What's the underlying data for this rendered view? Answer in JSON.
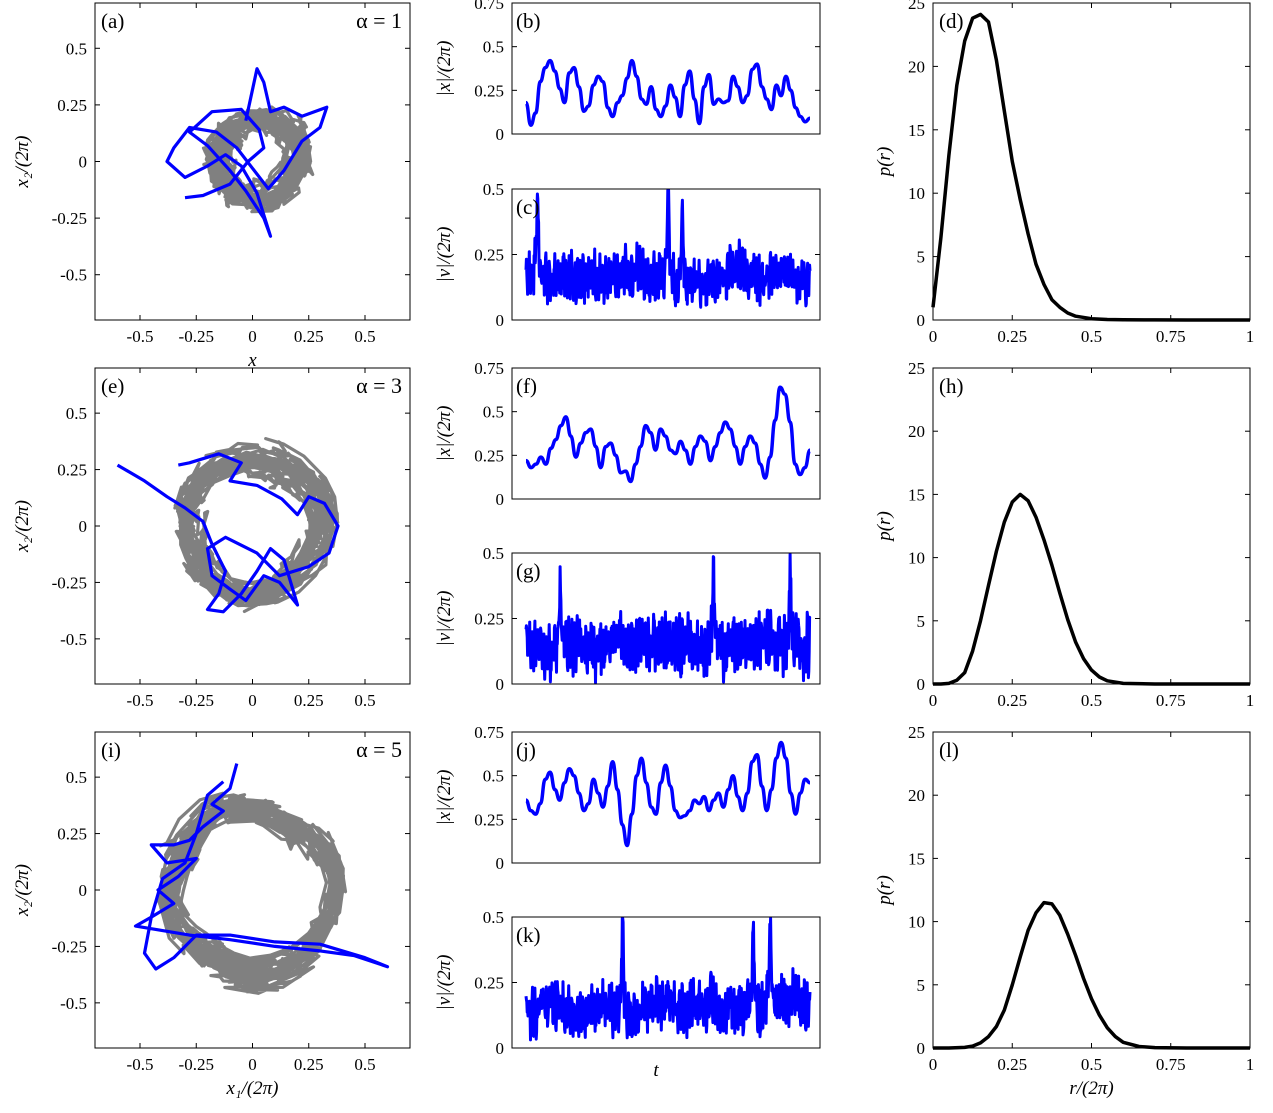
{
  "colors": {
    "trajectory": "#0000ff",
    "background_trajectories": "#808080",
    "pdf": "#000000"
  },
  "chart_data": [
    {
      "type": "scatter",
      "panel": "(a)",
      "alpha_label": "α = 1",
      "xlabel": "x",
      "ylabel": "x₂/(2π)",
      "xlim": [
        -0.7,
        0.7
      ],
      "ylim": [
        -0.7,
        0.7
      ],
      "xticks": [
        "-0.5",
        "-0.25",
        "0",
        "0.25",
        "0.5"
      ],
      "yticks": [
        "-0.5",
        "-0.25",
        "0",
        "0.25",
        "0.5"
      ],
      "background_ring": {
        "radius": 0.17,
        "spread": 0.09,
        "arms": 1
      },
      "trajectory": [
        [
          -0.03,
          0.18
        ],
        [
          0.02,
          0.41
        ],
        [
          0.05,
          0.35
        ],
        [
          0.08,
          0.22
        ],
        [
          0.14,
          0.24
        ],
        [
          0.22,
          0.2
        ],
        [
          0.33,
          0.24
        ],
        [
          0.3,
          0.15
        ],
        [
          0.22,
          0.09
        ],
        [
          0.14,
          -0.04
        ],
        [
          0.07,
          -0.12
        ],
        [
          0.0,
          -0.03
        ],
        [
          -0.07,
          0.06
        ],
        [
          -0.16,
          0.13
        ],
        [
          -0.28,
          0.15
        ],
        [
          -0.35,
          0.06
        ],
        [
          -0.38,
          0.0
        ],
        [
          -0.3,
          -0.07
        ],
        [
          -0.2,
          -0.02
        ],
        [
          -0.12,
          0.03
        ],
        [
          -0.05,
          -0.02
        ],
        [
          0.02,
          -0.14
        ],
        [
          0.08,
          -0.33
        ],
        [
          0.05,
          -0.25
        ],
        [
          -0.03,
          -0.13
        ],
        [
          -0.1,
          -0.04
        ],
        [
          -0.2,
          0.07
        ],
        [
          -0.28,
          0.13
        ],
        [
          -0.18,
          0.22
        ],
        [
          -0.05,
          0.23
        ],
        [
          0.03,
          0.14
        ],
        [
          0.05,
          0.06
        ],
        [
          -0.02,
          0.0
        ],
        [
          -0.1,
          -0.1
        ],
        [
          -0.22,
          -0.15
        ],
        [
          -0.3,
          -0.16
        ]
      ]
    },
    {
      "type": "line",
      "panel": "(b)",
      "ylabel": "|x|/(2π)",
      "ylim": [
        0,
        0.75
      ],
      "yticks": [
        "0",
        "0.25",
        "0.5",
        "0.75"
      ],
      "values": [
        0.18,
        0.05,
        0.12,
        0.3,
        0.38,
        0.42,
        0.36,
        0.26,
        0.18,
        0.35,
        0.38,
        0.27,
        0.13,
        0.16,
        0.28,
        0.33,
        0.3,
        0.15,
        0.1,
        0.18,
        0.22,
        0.32,
        0.42,
        0.33,
        0.2,
        0.17,
        0.27,
        0.14,
        0.1,
        0.16,
        0.28,
        0.21,
        0.1,
        0.28,
        0.36,
        0.2,
        0.06,
        0.27,
        0.34,
        0.17,
        0.2,
        0.18,
        0.19,
        0.33,
        0.27,
        0.18,
        0.22,
        0.37,
        0.4,
        0.27,
        0.2,
        0.14,
        0.28,
        0.22,
        0.33,
        0.25,
        0.15,
        0.1,
        0.07,
        0.09
      ]
    },
    {
      "type": "line",
      "panel": "(c)",
      "ylabel": "|v|/(2π)",
      "ylim": [
        0,
        0.5
      ],
      "yticks": [
        "0",
        "0.25",
        "0.5"
      ],
      "mean": 0.16,
      "amplitude": 0.09,
      "peaks": [
        [
          0.04,
          0.43
        ],
        [
          0.5,
          0.49
        ],
        [
          0.55,
          0.38
        ]
      ]
    },
    {
      "type": "line",
      "panel": "(d)",
      "ylabel": "p(r)",
      "xlim": [
        0,
        1
      ],
      "ylim": [
        0,
        25
      ],
      "xticks": [
        "0",
        "0.25",
        "0.5",
        "0.75",
        "1"
      ],
      "yticks": [
        "0",
        "5",
        "10",
        "15",
        "20",
        "25"
      ],
      "x": [
        0,
        0.025,
        0.05,
        0.075,
        0.1,
        0.125,
        0.15,
        0.175,
        0.2,
        0.225,
        0.25,
        0.275,
        0.3,
        0.325,
        0.35,
        0.375,
        0.4,
        0.425,
        0.45,
        0.5,
        0.55,
        0.6,
        0.7,
        0.8,
        0.9,
        1.0
      ],
      "values": [
        1,
        6.5,
        13,
        18.5,
        22,
        23.8,
        24.1,
        23.5,
        20.5,
        16.5,
        12.5,
        9.5,
        6.8,
        4.4,
        2.8,
        1.6,
        1.0,
        0.55,
        0.3,
        0.1,
        0.04,
        0.02,
        0.01,
        0,
        0,
        0
      ]
    },
    {
      "type": "scatter",
      "panel": "(e)",
      "alpha_label": "α = 3",
      "ylabel": "x₂/(2π)",
      "xlim": [
        -0.7,
        0.7
      ],
      "ylim": [
        -0.7,
        0.7
      ],
      "xticks": [
        "-0.5",
        "-0.25",
        "0",
        "0.25",
        "0.5"
      ],
      "yticks": [
        "-0.5",
        "-0.25",
        "0",
        "0.25",
        "0.5"
      ],
      "background_ring": {
        "radius": 0.3,
        "spread": 0.1,
        "arms": 3
      },
      "trajectory": [
        [
          -0.6,
          0.27
        ],
        [
          -0.48,
          0.2
        ],
        [
          -0.38,
          0.13
        ],
        [
          -0.3,
          0.08
        ],
        [
          -0.22,
          0.02
        ],
        [
          -0.18,
          -0.08
        ],
        [
          -0.12,
          -0.2
        ],
        [
          -0.15,
          -0.3
        ],
        [
          -0.2,
          -0.37
        ],
        [
          -0.13,
          -0.38
        ],
        [
          -0.05,
          -0.3
        ],
        [
          0.02,
          -0.2
        ],
        [
          0.08,
          -0.1
        ],
        [
          0.14,
          -0.15
        ],
        [
          0.2,
          -0.35
        ],
        [
          0.12,
          -0.25
        ],
        [
          0.05,
          -0.22
        ],
        [
          -0.03,
          -0.33
        ],
        [
          -0.1,
          -0.28
        ],
        [
          -0.18,
          -0.22
        ],
        [
          -0.2,
          -0.1
        ],
        [
          -0.12,
          -0.05
        ],
        [
          0.02,
          -0.12
        ],
        [
          0.12,
          -0.22
        ],
        [
          0.25,
          -0.18
        ],
        [
          0.34,
          -0.12
        ],
        [
          0.38,
          0.0
        ],
        [
          0.32,
          0.1
        ],
        [
          0.25,
          0.13
        ],
        [
          0.2,
          0.05
        ],
        [
          0.13,
          0.12
        ],
        [
          0.02,
          0.18
        ],
        [
          -0.1,
          0.2
        ],
        [
          -0.05,
          0.28
        ],
        [
          -0.15,
          0.32
        ],
        [
          -0.28,
          0.28
        ],
        [
          -0.33,
          0.27
        ]
      ]
    },
    {
      "type": "line",
      "panel": "(f)",
      "ylabel": "|x|/(2π)",
      "ylim": [
        0,
        0.75
      ],
      "yticks": [
        "0",
        "0.25",
        "0.5",
        "0.75"
      ],
      "values": [
        0.22,
        0.18,
        0.2,
        0.24,
        0.2,
        0.29,
        0.34,
        0.42,
        0.47,
        0.36,
        0.24,
        0.32,
        0.38,
        0.4,
        0.3,
        0.18,
        0.3,
        0.32,
        0.25,
        0.15,
        0.16,
        0.1,
        0.2,
        0.3,
        0.42,
        0.38,
        0.28,
        0.4,
        0.36,
        0.28,
        0.26,
        0.33,
        0.28,
        0.2,
        0.3,
        0.36,
        0.33,
        0.22,
        0.3,
        0.38,
        0.44,
        0.4,
        0.3,
        0.2,
        0.3,
        0.36,
        0.32,
        0.2,
        0.12,
        0.24,
        0.45,
        0.64,
        0.6,
        0.44,
        0.2,
        0.14,
        0.18,
        0.28
      ]
    },
    {
      "type": "line",
      "panel": "(g)",
      "ylabel": "|v|/(2π)",
      "ylim": [
        0,
        0.5
      ],
      "yticks": [
        "0",
        "0.25",
        "0.5"
      ],
      "mean": 0.16,
      "amplitude": 0.11,
      "peaks": [
        [
          0.12,
          0.38
        ],
        [
          0.66,
          0.4
        ],
        [
          0.93,
          0.42
        ]
      ]
    },
    {
      "type": "line",
      "panel": "(h)",
      "ylabel": "p(r)",
      "xlim": [
        0,
        1
      ],
      "ylim": [
        0,
        25
      ],
      "xticks": [
        "0",
        "0.25",
        "0.5",
        "0.75",
        "1"
      ],
      "yticks": [
        "0",
        "5",
        "10",
        "15",
        "20",
        "25"
      ],
      "x": [
        0,
        0.025,
        0.05,
        0.075,
        0.1,
        0.125,
        0.15,
        0.175,
        0.2,
        0.225,
        0.25,
        0.275,
        0.3,
        0.325,
        0.35,
        0.375,
        0.4,
        0.425,
        0.45,
        0.475,
        0.5,
        0.525,
        0.55,
        0.6,
        0.7,
        0.8,
        1.0
      ],
      "values": [
        0,
        0,
        0.05,
        0.3,
        0.9,
        2.6,
        5.0,
        7.8,
        10.5,
        12.8,
        14.4,
        15.0,
        14.5,
        13.2,
        11.4,
        9.4,
        7.2,
        5.1,
        3.3,
        2.0,
        1.1,
        0.55,
        0.25,
        0.05,
        0,
        0,
        0
      ]
    },
    {
      "type": "scatter",
      "panel": "(i)",
      "alpha_label": "α = 5",
      "xlabel": "x₁/(2π)",
      "ylabel": "x₂/(2π)",
      "xlim": [
        -0.7,
        0.7
      ],
      "ylim": [
        -0.7,
        0.7
      ],
      "xticks": [
        "-0.5",
        "-0.25",
        "0",
        "0.25",
        "0.5"
      ],
      "yticks": [
        "-0.5",
        "-0.25",
        "0",
        "0.25",
        "0.5"
      ],
      "background_ring": {
        "radius": 0.36,
        "spread": 0.1,
        "arms": 4
      },
      "trajectory": [
        [
          -0.07,
          0.56
        ],
        [
          -0.1,
          0.45
        ],
        [
          -0.18,
          0.38
        ],
        [
          -0.13,
          0.35
        ],
        [
          -0.22,
          0.28
        ],
        [
          -0.28,
          0.22
        ],
        [
          -0.35,
          0.2
        ],
        [
          -0.45,
          0.2
        ],
        [
          -0.38,
          0.12
        ],
        [
          -0.25,
          0.14
        ],
        [
          -0.33,
          0.06
        ],
        [
          -0.42,
          0.0
        ],
        [
          -0.35,
          -0.06
        ],
        [
          -0.45,
          -0.12
        ],
        [
          -0.52,
          -0.16
        ],
        [
          -0.4,
          -0.18
        ],
        [
          -0.28,
          -0.2
        ],
        [
          -0.1,
          -0.22
        ],
        [
          0.1,
          -0.25
        ],
        [
          0.3,
          -0.27
        ],
        [
          0.45,
          -0.29
        ],
        [
          0.6,
          -0.34
        ],
        [
          0.5,
          -0.3
        ],
        [
          0.3,
          -0.24
        ],
        [
          0.1,
          -0.23
        ],
        [
          -0.1,
          -0.2
        ],
        [
          -0.25,
          -0.2
        ],
        [
          -0.35,
          -0.3
        ],
        [
          -0.43,
          -0.35
        ],
        [
          -0.48,
          -0.28
        ],
        [
          -0.45,
          -0.12
        ],
        [
          -0.4,
          0.05
        ],
        [
          -0.3,
          0.12
        ],
        [
          -0.25,
          0.25
        ],
        [
          -0.2,
          0.42
        ],
        [
          -0.13,
          0.48
        ]
      ]
    },
    {
      "type": "line",
      "panel": "(j)",
      "ylabel": "|x|/(2π)",
      "ylim": [
        0,
        0.75
      ],
      "yticks": [
        "0",
        "0.25",
        "0.5",
        "0.75"
      ],
      "values": [
        0.36,
        0.3,
        0.28,
        0.34,
        0.48,
        0.52,
        0.42,
        0.36,
        0.46,
        0.54,
        0.5,
        0.4,
        0.3,
        0.34,
        0.48,
        0.4,
        0.32,
        0.44,
        0.58,
        0.42,
        0.22,
        0.1,
        0.28,
        0.5,
        0.6,
        0.46,
        0.32,
        0.28,
        0.46,
        0.56,
        0.44,
        0.3,
        0.26,
        0.27,
        0.3,
        0.36,
        0.34,
        0.38,
        0.3,
        0.36,
        0.4,
        0.32,
        0.42,
        0.5,
        0.38,
        0.3,
        0.4,
        0.58,
        0.62,
        0.44,
        0.3,
        0.42,
        0.6,
        0.69,
        0.6,
        0.4,
        0.28,
        0.4,
        0.48,
        0.46
      ]
    },
    {
      "type": "line",
      "panel": "(k)",
      "ylabel": "|v|/(2π)",
      "xlabel": "t",
      "ylim": [
        0,
        0.5
      ],
      "yticks": [
        "0",
        "0.25",
        "0.5"
      ],
      "mean": 0.15,
      "amplitude": 0.1,
      "peaks": [
        [
          0.34,
          0.46
        ],
        [
          0.8,
          0.42
        ],
        [
          0.86,
          0.4
        ]
      ]
    },
    {
      "type": "line",
      "panel": "(l)",
      "ylabel": "p(r)",
      "xlabel": "r/(2π)",
      "xlim": [
        0,
        1
      ],
      "ylim": [
        0,
        25
      ],
      "xticks": [
        "0",
        "0.25",
        "0.5",
        "0.75",
        "1"
      ],
      "yticks": [
        "0",
        "5",
        "10",
        "15",
        "20",
        "25"
      ],
      "x": [
        0,
        0.05,
        0.1,
        0.125,
        0.15,
        0.175,
        0.2,
        0.225,
        0.25,
        0.275,
        0.3,
        0.325,
        0.35,
        0.375,
        0.4,
        0.425,
        0.45,
        0.475,
        0.5,
        0.525,
        0.55,
        0.575,
        0.6,
        0.65,
        0.7,
        0.8,
        1.0
      ],
      "values": [
        0,
        0,
        0.05,
        0.15,
        0.4,
        0.9,
        1.7,
        3.0,
        5.0,
        7.2,
        9.3,
        10.7,
        11.5,
        11.4,
        10.5,
        9.0,
        7.3,
        5.5,
        3.9,
        2.6,
        1.6,
        0.9,
        0.45,
        0.12,
        0.03,
        0,
        0
      ]
    }
  ]
}
